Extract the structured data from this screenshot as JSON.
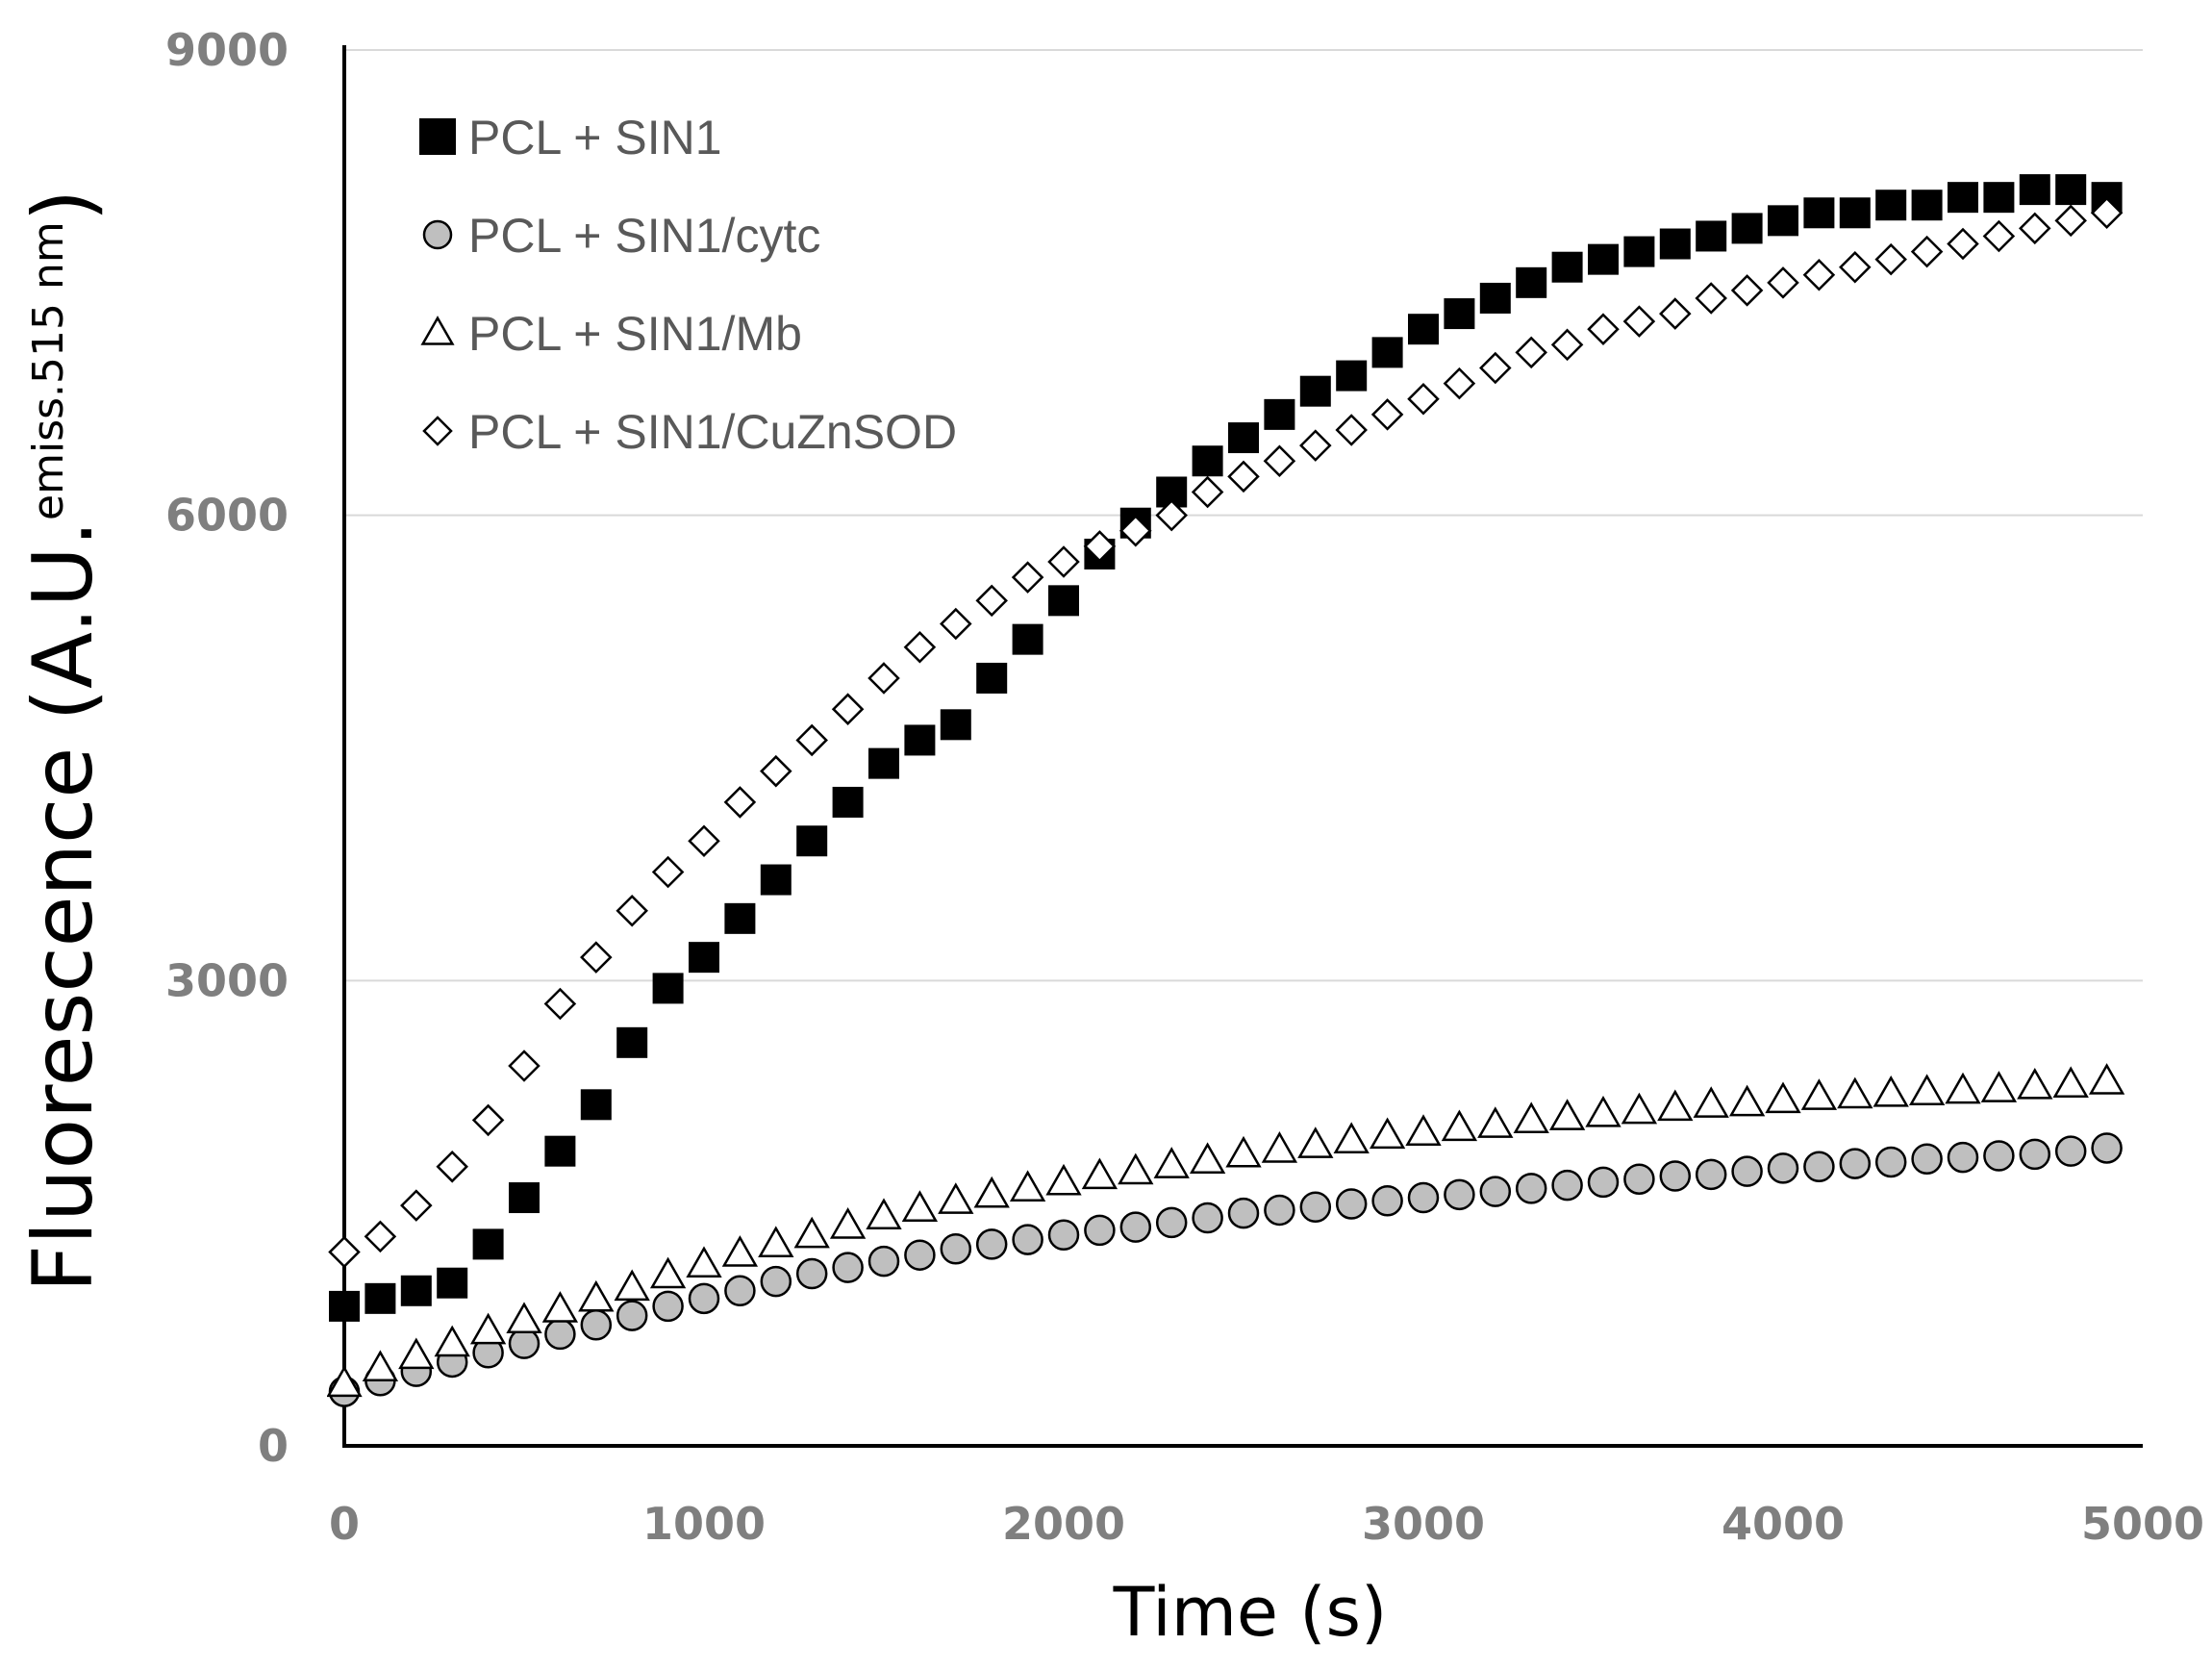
{
  "chart_data": {
    "type": "scatter",
    "title": "",
    "xlabel": "Time (s)",
    "ylabel": {
      "main": "Fluorescence (A.U.",
      "sup": "emiss.515 nm",
      "close": ")"
    },
    "xlim": [
      0,
      5000
    ],
    "ylim": [
      0,
      9000
    ],
    "xticks": [
      0,
      1000,
      2000,
      3000,
      4000,
      5000
    ],
    "yticks": [
      0,
      3000,
      6000,
      9000
    ],
    "grid": {
      "y": true,
      "x": false
    },
    "legend_position": "top-left",
    "series": [
      {
        "name": "PCL + SIN1",
        "marker": "square-filled",
        "color": "#000000",
        "x": [
          0,
          100,
          200,
          300,
          400,
          500,
          600,
          700,
          800,
          900,
          1000,
          1100,
          1200,
          1300,
          1400,
          1500,
          1600,
          1700,
          1800,
          1900,
          2000,
          2100,
          2200,
          2300,
          2400,
          2500,
          2600,
          2700,
          2800,
          2900,
          3000,
          3100,
          3200,
          3300,
          3400,
          3500,
          3600,
          3700,
          3800,
          3900,
          4000,
          4100,
          4200,
          4300,
          4400,
          4500,
          4600,
          4700,
          4800,
          4900
        ],
        "y": [
          900,
          950,
          1000,
          1050,
          1300,
          1600,
          1900,
          2200,
          2600,
          2950,
          3150,
          3400,
          3650,
          3900,
          4150,
          4400,
          4550,
          4650,
          4950,
          5200,
          5450,
          5750,
          5950,
          6150,
          6350,
          6500,
          6650,
          6800,
          6900,
          7050,
          7200,
          7300,
          7400,
          7500,
          7600,
          7650,
          7700,
          7750,
          7800,
          7850,
          7900,
          7950,
          7950,
          8000,
          8000,
          8050,
          8050,
          8100,
          8100,
          8050
        ]
      },
      {
        "name": "PCL + SIN1/cytc",
        "marker": "circle-gray",
        "color": "#bfbfbf",
        "x": [
          0,
          100,
          200,
          300,
          400,
          500,
          600,
          700,
          800,
          900,
          1000,
          1100,
          1200,
          1300,
          1400,
          1500,
          1600,
          1700,
          1800,
          1900,
          2000,
          2100,
          2200,
          2300,
          2400,
          2500,
          2600,
          2700,
          2800,
          2900,
          3000,
          3100,
          3200,
          3300,
          3400,
          3500,
          3600,
          3700,
          3800,
          3900,
          4000,
          4100,
          4200,
          4300,
          4400,
          4500,
          4600,
          4700,
          4800,
          4900
        ],
        "y": [
          350,
          420,
          480,
          540,
          600,
          660,
          720,
          780,
          840,
          900,
          950,
          1000,
          1060,
          1110,
          1150,
          1190,
          1230,
          1270,
          1300,
          1330,
          1360,
          1390,
          1410,
          1440,
          1470,
          1500,
          1520,
          1540,
          1560,
          1580,
          1600,
          1620,
          1640,
          1660,
          1680,
          1700,
          1720,
          1740,
          1750,
          1770,
          1790,
          1800,
          1820,
          1830,
          1850,
          1860,
          1870,
          1880,
          1900,
          1920
        ]
      },
      {
        "name": "PCL + SIN1/Mb",
        "marker": "triangle-open",
        "color": "#000000",
        "x": [
          0,
          100,
          200,
          300,
          400,
          500,
          600,
          700,
          800,
          900,
          1000,
          1100,
          1200,
          1300,
          1400,
          1500,
          1600,
          1700,
          1800,
          1900,
          2000,
          2100,
          2200,
          2300,
          2400,
          2500,
          2600,
          2700,
          2800,
          2900,
          3000,
          3100,
          3200,
          3300,
          3400,
          3500,
          3600,
          3700,
          3800,
          3900,
          4000,
          4100,
          4200,
          4300,
          4400,
          4500,
          4600,
          4700,
          4800,
          4900
        ],
        "y": [
          400,
          500,
          580,
          660,
          740,
          810,
          880,
          950,
          1020,
          1100,
          1170,
          1240,
          1300,
          1360,
          1420,
          1480,
          1530,
          1580,
          1620,
          1660,
          1700,
          1740,
          1770,
          1810,
          1840,
          1880,
          1910,
          1940,
          1970,
          2000,
          2020,
          2050,
          2070,
          2100,
          2120,
          2140,
          2160,
          2180,
          2200,
          2210,
          2230,
          2250,
          2260,
          2270,
          2280,
          2290,
          2300,
          2320,
          2330,
          2350
        ]
      },
      {
        "name": "PCL + SIN1/CuZnSOD",
        "marker": "diamond-open",
        "color": "#000000",
        "x": [
          0,
          100,
          200,
          300,
          400,
          500,
          600,
          700,
          800,
          900,
          1000,
          1100,
          1200,
          1300,
          1400,
          1500,
          1600,
          1700,
          1800,
          1900,
          2000,
          2100,
          2200,
          2300,
          2400,
          2500,
          2600,
          2700,
          2800,
          2900,
          3000,
          3100,
          3200,
          3300,
          3400,
          3500,
          3600,
          3700,
          3800,
          3900,
          4000,
          4100,
          4200,
          4300,
          4400,
          4500,
          4600,
          4700,
          4800,
          4900
        ],
        "y": [
          1250,
          1350,
          1550,
          1800,
          2100,
          2450,
          2850,
          3150,
          3450,
          3700,
          3900,
          4150,
          4350,
          4550,
          4750,
          4950,
          5150,
          5300,
          5450,
          5600,
          5700,
          5800,
          5900,
          6000,
          6150,
          6250,
          6350,
          6450,
          6550,
          6650,
          6750,
          6850,
          6950,
          7050,
          7100,
          7200,
          7250,
          7300,
          7400,
          7450,
          7500,
          7550,
          7600,
          7650,
          7700,
          7750,
          7800,
          7850,
          7900,
          7950
        ]
      }
    ]
  }
}
